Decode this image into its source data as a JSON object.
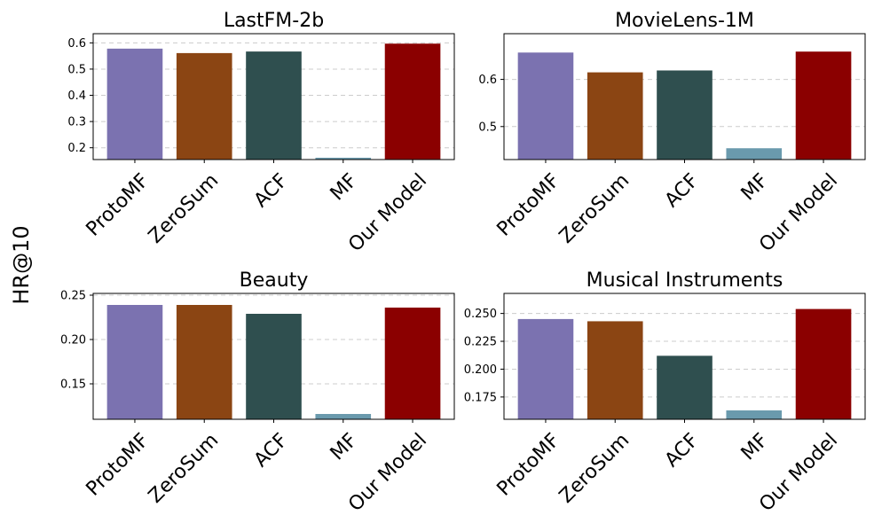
{
  "figure": {
    "ylabel": "HR@10"
  },
  "chart_data": [
    {
      "type": "bar",
      "title": "LastFM-2b",
      "categories": [
        "ProtoMF",
        "ZeroSum",
        "ACF",
        "MF",
        "Our Model"
      ],
      "values": [
        0.578,
        0.561,
        0.567,
        0.162,
        0.597
      ],
      "colors": [
        "#7b72b0",
        "#8b4513",
        "#2f4f4f",
        "#6a9aad",
        "#8b0000"
      ],
      "ylim": [
        0.155,
        0.635
      ],
      "yticks": [
        0.2,
        0.3,
        0.4,
        0.5,
        0.6
      ],
      "ytick_labels": [
        "0.2",
        "0.3",
        "0.4",
        "0.5",
        "0.6"
      ],
      "grid": true
    },
    {
      "type": "bar",
      "title": "MovieLens-1M",
      "categories": [
        "ProtoMF",
        "ZeroSum",
        "ACF",
        "MF",
        "Our Model"
      ],
      "values": [
        0.657,
        0.615,
        0.619,
        0.454,
        0.659
      ],
      "colors": [
        "#7b72b0",
        "#8b4513",
        "#2f4f4f",
        "#6a9aad",
        "#8b0000"
      ],
      "ylim": [
        0.43,
        0.697
      ],
      "yticks": [
        0.5,
        0.6
      ],
      "ytick_labels": [
        "0.5",
        "0.6"
      ],
      "grid": true
    },
    {
      "type": "bar",
      "title": "Beauty",
      "categories": [
        "ProtoMF",
        "ZeroSum",
        "ACF",
        "MF",
        "Our Model"
      ],
      "values": [
        0.239,
        0.239,
        0.229,
        0.116,
        0.236
      ],
      "colors": [
        "#7b72b0",
        "#8b4513",
        "#2f4f4f",
        "#6a9aad",
        "#8b0000"
      ],
      "ylim": [
        0.11,
        0.252
      ],
      "yticks": [
        0.15,
        0.2,
        0.25
      ],
      "ytick_labels": [
        "0.15",
        "0.20",
        "0.25"
      ],
      "grid": true
    },
    {
      "type": "bar",
      "title": "Musical Instruments",
      "categories": [
        "ProtoMF",
        "ZeroSum",
        "ACF",
        "MF",
        "Our Model"
      ],
      "values": [
        0.245,
        0.243,
        0.212,
        0.163,
        0.254
      ],
      "colors": [
        "#7b72b0",
        "#8b4513",
        "#2f4f4f",
        "#6a9aad",
        "#8b0000"
      ],
      "ylim": [
        0.155,
        0.268
      ],
      "yticks": [
        0.175,
        0.2,
        0.225,
        0.25
      ],
      "ytick_labels": [
        "0.175",
        "0.200",
        "0.225",
        "0.250"
      ],
      "grid": true
    }
  ]
}
